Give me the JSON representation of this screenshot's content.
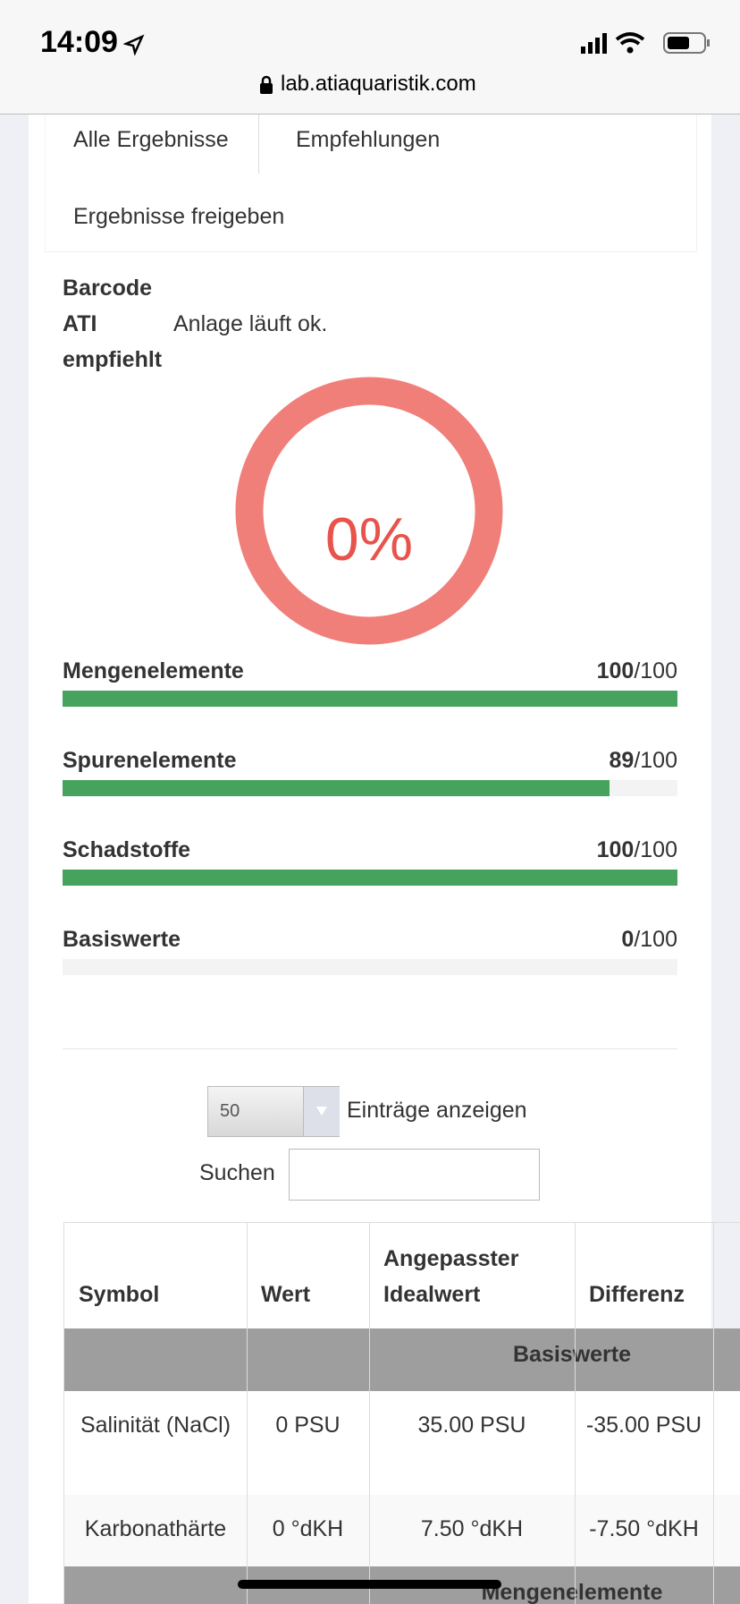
{
  "status_bar": {
    "time": "14:09",
    "url": "lab.atiaquaristik.com"
  },
  "tabs": [
    "Alle Ergebnisse",
    "Empfehlungen",
    "Ergebnisse freigeben"
  ],
  "info": {
    "barcode_label": "Barcode",
    "recommend_label_1": "ATI",
    "recommend_label_2": "empfiehlt",
    "recommendation": "Anlage läuft ok."
  },
  "gauge": {
    "label": "0%"
  },
  "scores": [
    {
      "name": "Mengenelemente",
      "score": 100,
      "total_label": "/100"
    },
    {
      "name": "Spurenelemente",
      "score": 89,
      "total_label": "/100"
    },
    {
      "name": "Schadstoffe",
      "score": 100,
      "total_label": "/100"
    },
    {
      "name": "Basiswerte",
      "score": 0,
      "total_label": "/100"
    }
  ],
  "table_controls": {
    "page_size": "50",
    "page_size_label": "Einträge anzeigen",
    "search_label": "Suchen"
  },
  "table": {
    "headers": [
      "Symbol",
      "Wert",
      "Angepasster Idealwert",
      "Differenz"
    ],
    "groups": [
      {
        "name": "Basiswerte",
        "rows": [
          [
            "Salinität (NaCl)",
            "0 PSU",
            "35.00 PSU",
            "-35.00 PSU"
          ],
          [
            "Karbonathärte",
            "0 °dKH",
            "7.50 °dKH",
            "-7.50 °dKH"
          ]
        ]
      },
      {
        "name": "Mengenelemente",
        "rows": []
      }
    ]
  }
}
